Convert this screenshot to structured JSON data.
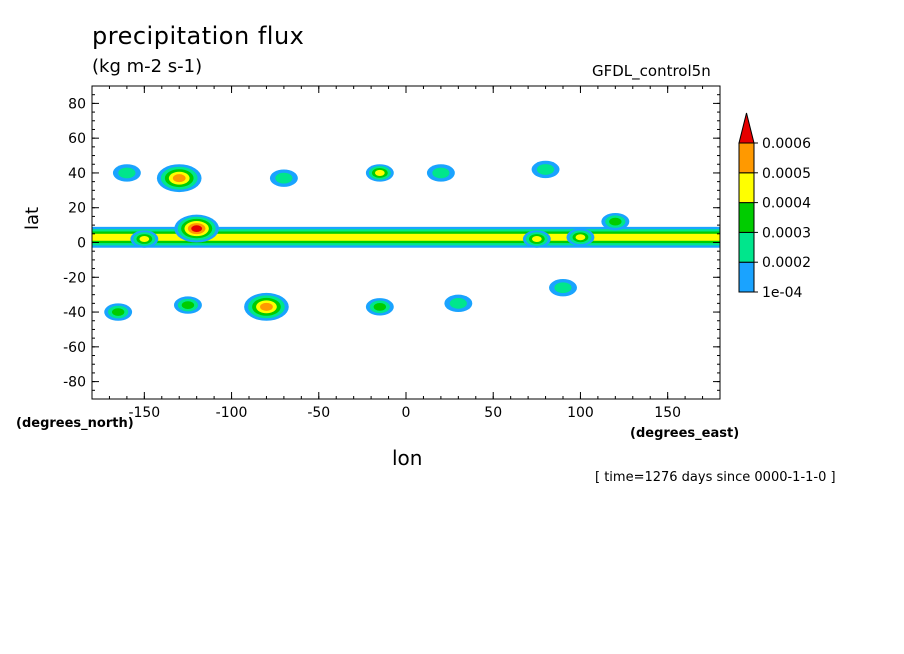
{
  "title": "precipitation flux",
  "units": "(kg m-2 s-1)",
  "model": "GFDL_control5n",
  "timestamp": "[ time=1276 days since 0000-1-1-0 ]",
  "chart_data": {
    "type": "heatmap",
    "title": "precipitation flux",
    "units": "(kg m-2 s-1)",
    "xlabel": "lon",
    "ylabel": "lat",
    "x_units": "(degrees_east)",
    "y_units": "(degrees_north)",
    "xlim": [
      -180,
      180
    ],
    "ylim": [
      -90,
      90
    ],
    "x_ticks": [
      "-150",
      "-100",
      "-50",
      "0",
      "50",
      "100",
      "150"
    ],
    "x_tick_values": [
      -150,
      -100,
      -50,
      0,
      50,
      100,
      150
    ],
    "y_ticks": [
      "80",
      "60",
      "40",
      "20",
      "0",
      "-20",
      "-40",
      "-60",
      "-80"
    ],
    "y_tick_values": [
      80,
      60,
      40,
      20,
      0,
      -20,
      -40,
      -60,
      -80
    ],
    "colorbar": {
      "labels": [
        "0.0006",
        "0.0005",
        "0.0004",
        "0.0003",
        "0.0002",
        "1e-04"
      ],
      "levels": [
        0.0001,
        0.0002,
        0.0003,
        0.0004,
        0.0005,
        0.0006
      ],
      "colors": [
        "#1aa3ff",
        "#00e68c",
        "#00cc00",
        "#ffff00",
        "#ff9900",
        "#e60000"
      ]
    },
    "features": [
      {
        "type": "band",
        "lon_range": [
          -180,
          180
        ],
        "lat_center": 3,
        "half_width": 6,
        "peak": 0.0004
      },
      {
        "type": "blob",
        "lon": -120,
        "lat": 8,
        "peak": 0.0006
      },
      {
        "type": "blob",
        "lon": -150,
        "lat": 2,
        "peak": 0.0004
      },
      {
        "type": "blob",
        "lon": -130,
        "lat": 37,
        "peak": 0.0005
      },
      {
        "type": "blob",
        "lon": -160,
        "lat": 40,
        "peak": 0.0002
      },
      {
        "type": "blob",
        "lon": -15,
        "lat": 40,
        "peak": 0.0004
      },
      {
        "type": "blob",
        "lon": 20,
        "lat": 40,
        "peak": 0.0002
      },
      {
        "type": "blob",
        "lon": 80,
        "lat": 42,
        "peak": 0.0002
      },
      {
        "type": "blob",
        "lon": -70,
        "lat": 37,
        "peak": 0.0002
      },
      {
        "type": "blob",
        "lon": -80,
        "lat": -37,
        "peak": 0.0005
      },
      {
        "type": "blob",
        "lon": -125,
        "lat": -36,
        "peak": 0.0003
      },
      {
        "type": "blob",
        "lon": -165,
        "lat": -40,
        "peak": 0.0003
      },
      {
        "type": "blob",
        "lon": -15,
        "lat": -37,
        "peak": 0.0003
      },
      {
        "type": "blob",
        "lon": 30,
        "lat": -35,
        "peak": 0.0002
      },
      {
        "type": "blob",
        "lon": 90,
        "lat": -26,
        "peak": 0.0002
      },
      {
        "type": "blob",
        "lon": 120,
        "lat": 12,
        "peak": 0.0003
      },
      {
        "type": "blob",
        "lon": 75,
        "lat": 2,
        "peak": 0.0004
      },
      {
        "type": "blob",
        "lon": 100,
        "lat": 3,
        "peak": 0.0004
      }
    ]
  }
}
